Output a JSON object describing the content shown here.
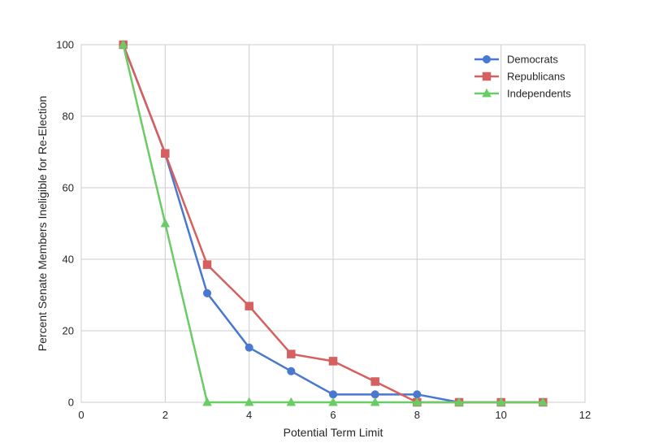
{
  "chart_data": {
    "type": "line",
    "title": "",
    "xlabel": "Potential Term Limit",
    "ylabel": "Percent Senate Members Ineligible for Re-Election",
    "xlim": [
      0,
      12
    ],
    "ylim": [
      0,
      100
    ],
    "xticks": [
      0,
      2,
      4,
      6,
      8,
      10,
      12
    ],
    "yticks": [
      0,
      20,
      40,
      60,
      80,
      100
    ],
    "grid": true,
    "legend_position": "top-right",
    "series": [
      {
        "name": "Democrats",
        "color": "#4878cf",
        "marker": "circle",
        "x": [
          1,
          2,
          3,
          4,
          5,
          6,
          7,
          8,
          9,
          10,
          11
        ],
        "y": [
          100,
          69.5,
          30.5,
          15.3,
          8.7,
          2.2,
          2.2,
          2.2,
          0,
          0,
          0
        ]
      },
      {
        "name": "Republicans",
        "color": "#d65f5f",
        "marker": "square",
        "x": [
          1,
          2,
          3,
          4,
          5,
          6,
          7,
          8,
          9,
          10,
          11
        ],
        "y": [
          100,
          69.6,
          38.5,
          26.9,
          13.5,
          11.5,
          5.8,
          0,
          0,
          0,
          0
        ]
      },
      {
        "name": "Independents",
        "color": "#6acc65",
        "marker": "triangle",
        "x": [
          1,
          2,
          3,
          4,
          5,
          6,
          7,
          8,
          9,
          10,
          11
        ],
        "y": [
          100,
          50,
          0,
          0,
          0,
          0,
          0,
          0,
          0,
          0,
          0
        ]
      }
    ]
  }
}
